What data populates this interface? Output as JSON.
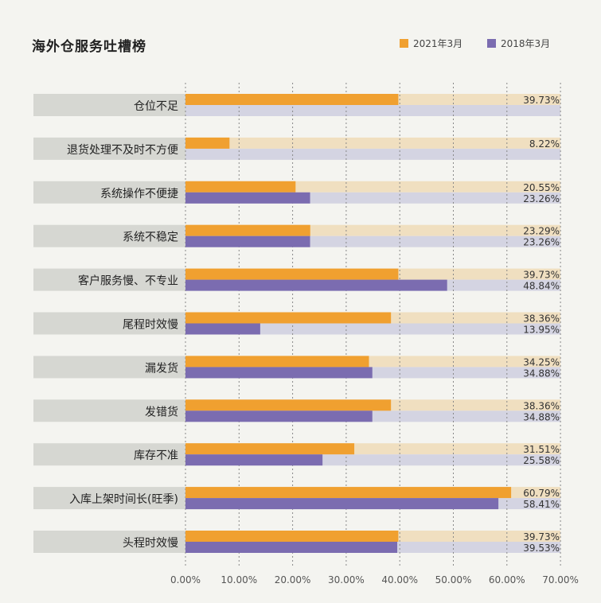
{
  "colors": {
    "series_2021": "#f0a030",
    "series_2018": "#7b6cb0",
    "track_2021": "#f0dfc0",
    "track_2018": "#d4d4e2",
    "label_band": "#d6d7d2",
    "background": "#f4f4f0",
    "grid": "#888888"
  },
  "chart_data": {
    "type": "bar",
    "orientation": "horizontal",
    "title": "海外仓服务吐槽榜",
    "legend_position": "top-right",
    "grid": true,
    "xlim": [
      0,
      70
    ],
    "x_ticks": [
      "0.00%",
      "10.00%",
      "20.00%",
      "30.00%",
      "40.00%",
      "50.00%",
      "60.00%",
      "70.00%"
    ],
    "categories": [
      "仓位不足",
      "退货处理不及时不方便",
      "系统操作不便捷",
      "系统不稳定",
      "客户服务慢、不专业",
      "尾程时效慢",
      "漏发货",
      "发错货",
      "库存不准",
      "入库上架时间长(旺季)",
      "头程时效慢"
    ],
    "series": [
      {
        "name": "2021年3月",
        "values": [
          39.73,
          8.22,
          20.55,
          23.29,
          39.73,
          38.36,
          34.25,
          38.36,
          31.51,
          60.79,
          39.73
        ],
        "labels": [
          "39.73%",
          "8.22%",
          "20.55%",
          "23.29%",
          "39.73%",
          "38.36%",
          "34.25%",
          "38.36%",
          "31.51%",
          "60.79%",
          "39.73%"
        ]
      },
      {
        "name": "2018年3月",
        "values": [
          null,
          null,
          23.26,
          23.26,
          48.84,
          13.95,
          34.88,
          34.88,
          25.58,
          58.41,
          39.53
        ],
        "labels": [
          "",
          "",
          "23.26%",
          "23.26%",
          "48.84%",
          "13.95%",
          "34.88%",
          "34.88%",
          "25.58%",
          "58.41%",
          "39.53%"
        ]
      }
    ]
  }
}
